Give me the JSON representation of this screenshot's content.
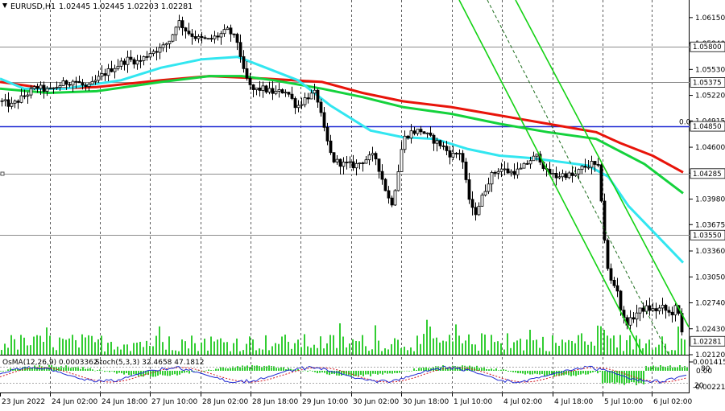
{
  "header": {
    "symbol_timeframe": "EURUSD,H1",
    "ohlc": "1.02445 1.02445 1.02203 1.02281"
  },
  "indicator_header": {
    "osma": "OsMA(12,26,9) 0.0003362",
    "stoch": "Stoch(5,3,3) 32.4658 47.1812"
  },
  "colors": {
    "background": "#ffffff",
    "candle": "#000000",
    "volume": "#32cd32",
    "ema_red": "#e8140a",
    "ema_green": "#14d23c",
    "ema_cyan": "#32e6f0",
    "channel_green": "#14d214",
    "blue_level": "#1e28d2",
    "grey_level": "#8c8c8c",
    "stoch_main": "#1e28d2",
    "stoch_signal": "#d2141e",
    "osma_hist": "#32cd32"
  },
  "chart_data": {
    "type": "candlestick",
    "symbol": "EURUSD",
    "timeframe": "H1",
    "y_range": [
      1.0212,
      1.0636
    ],
    "price_ticks": [
      "1.06150",
      "1.05840",
      "1.05530",
      "1.05220",
      "1.04915",
      "1.04600",
      "1.04290",
      "1.03980",
      "1.03675",
      "1.03360",
      "1.03050",
      "1.02740",
      "1.02430",
      "1.02120"
    ],
    "price_tags": [
      {
        "label": "1.05800",
        "value": 1.058
      },
      {
        "label": "1.05375",
        "value": 1.05375
      },
      {
        "label": "1.04850",
        "value": 1.0485
      },
      {
        "label": "1.04285",
        "value": 1.04285
      },
      {
        "label": "1.03550",
        "value": 1.0355
      },
      {
        "label": "1.02281",
        "value": 1.02281
      }
    ],
    "horizontal_levels": [
      {
        "value": 1.058,
        "color": "grey"
      },
      {
        "value": 1.05375,
        "color": "grey"
      },
      {
        "value": 1.0485,
        "color": "blue",
        "label": "0.0"
      },
      {
        "value": 1.04285,
        "color": "grey"
      },
      {
        "value": 1.0355,
        "color": "grey"
      }
    ],
    "time_labels": [
      "23 Jun 2022",
      "24 Jun 02:00",
      "24 Jun 18:00",
      "27 Jun 10:00",
      "28 Jun 02:00",
      "28 Jun 18:00",
      "29 Jun 10:00",
      "30 Jun 02:00",
      "30 Jun 18:00",
      "1 Jul 10:00",
      "4 Jul 02:00",
      "4 Jul 18:00",
      "5 Jul 10:00",
      "6 Jul 02:00"
    ],
    "price_path": [
      [
        0,
        1.0515
      ],
      [
        14,
        1.051
      ],
      [
        28,
        1.052
      ],
      [
        45,
        1.0532
      ],
      [
        60,
        1.0527
      ],
      [
        75,
        1.0535
      ],
      [
        92,
        1.054
      ],
      [
        108,
        1.053
      ],
      [
        125,
        1.0545
      ],
      [
        140,
        1.0555
      ],
      [
        158,
        1.0565
      ],
      [
        172,
        1.0562
      ],
      [
        188,
        1.0575
      ],
      [
        200,
        1.0578
      ],
      [
        212,
        1.059
      ],
      [
        220,
        1.0612
      ],
      [
        232,
        1.0598
      ],
      [
        245,
        1.059
      ],
      [
        258,
        1.0588
      ],
      [
        270,
        1.0593
      ],
      [
        283,
        1.06
      ],
      [
        295,
        1.0585
      ],
      [
        302,
        1.055
      ],
      [
        312,
        1.0528
      ],
      [
        325,
        1.053
      ],
      [
        340,
        1.0525
      ],
      [
        355,
        1.0528
      ],
      [
        368,
        1.0508
      ],
      [
        380,
        1.052
      ],
      [
        392,
        1.0525
      ],
      [
        402,
        1.048
      ],
      [
        412,
        1.0445
      ],
      [
        425,
        1.044
      ],
      [
        440,
        1.0438
      ],
      [
        452,
        1.0445
      ],
      [
        465,
        1.045
      ],
      [
        478,
        1.041
      ],
      [
        485,
        1.039
      ],
      [
        492,
        1.042
      ],
      [
        500,
        1.047
      ],
      [
        510,
        1.0478
      ],
      [
        522,
        1.048
      ],
      [
        535,
        1.047
      ],
      [
        548,
        1.0462
      ],
      [
        560,
        1.045
      ],
      [
        572,
        1.0455
      ],
      [
        580,
        1.0405
      ],
      [
        588,
        1.0378
      ],
      [
        598,
        1.04
      ],
      [
        608,
        1.0425
      ],
      [
        620,
        1.0435
      ],
      [
        632,
        1.043
      ],
      [
        645,
        1.0432
      ],
      [
        658,
        1.0445
      ],
      [
        668,
        1.045
      ],
      [
        678,
        1.043
      ],
      [
        690,
        1.0425
      ],
      [
        700,
        1.0428
      ],
      [
        712,
        1.0425
      ],
      [
        722,
        1.0435
      ],
      [
        734,
        1.044
      ],
      [
        742,
        1.0435
      ],
      [
        748,
        1.038
      ],
      [
        752,
        1.032
      ],
      [
        758,
        1.03
      ],
      [
        766,
        1.029
      ],
      [
        772,
        1.0255
      ],
      [
        780,
        1.025
      ],
      [
        790,
        1.0262
      ],
      [
        800,
        1.0268
      ],
      [
        812,
        1.0265
      ],
      [
        822,
        1.0268
      ],
      [
        832,
        1.026
      ],
      [
        840,
        1.027
      ],
      [
        848,
        1.0228
      ]
    ],
    "moving_averages": [
      {
        "color": "red",
        "points": [
          [
            0,
            1.0538
          ],
          [
            60,
            1.053
          ],
          [
            120,
            1.0532
          ],
          [
            200,
            1.054
          ],
          [
            260,
            1.0545
          ],
          [
            330,
            1.0542
          ],
          [
            400,
            1.0538
          ],
          [
            450,
            1.0525
          ],
          [
            500,
            1.0515
          ],
          [
            560,
            1.0508
          ],
          [
            620,
            1.0498
          ],
          [
            680,
            1.0488
          ],
          [
            740,
            1.0478
          ],
          [
            770,
            1.0465
          ],
          [
            810,
            1.045
          ],
          [
            848,
            1.043
          ]
        ]
      },
      {
        "color": "green",
        "points": [
          [
            0,
            1.053
          ],
          [
            60,
            1.0525
          ],
          [
            120,
            1.0527
          ],
          [
            200,
            1.0538
          ],
          [
            260,
            1.0545
          ],
          [
            300,
            1.0545
          ],
          [
            340,
            1.054
          ],
          [
            400,
            1.053
          ],
          [
            450,
            1.052
          ],
          [
            500,
            1.0508
          ],
          [
            560,
            1.05
          ],
          [
            620,
            1.0488
          ],
          [
            680,
            1.0478
          ],
          [
            740,
            1.047
          ],
          [
            770,
            1.0455
          ],
          [
            800,
            1.044
          ],
          [
            848,
            1.0405
          ]
        ]
      },
      {
        "color": "cyan",
        "points": [
          [
            0,
            1.0542
          ],
          [
            30,
            1.053
          ],
          [
            80,
            1.053
          ],
          [
            150,
            1.054
          ],
          [
            200,
            1.0555
          ],
          [
            250,
            1.0565
          ],
          [
            295,
            1.0568
          ],
          [
            330,
            1.0555
          ],
          [
            370,
            1.054
          ],
          [
            410,
            1.051
          ],
          [
            460,
            1.048
          ],
          [
            500,
            1.0472
          ],
          [
            540,
            1.047
          ],
          [
            580,
            1.0458
          ],
          [
            620,
            1.045
          ],
          [
            660,
            1.0447
          ],
          [
            700,
            1.0442
          ],
          [
            730,
            1.0438
          ],
          [
            755,
            1.0425
          ],
          [
            780,
            1.039
          ],
          [
            810,
            1.036
          ],
          [
            848,
            1.0322
          ]
        ]
      }
    ],
    "trend_lines": [
      {
        "color": "green",
        "style": "solid",
        "from": [
          570,
          1.0636
        ],
        "to": [
          798,
          1.0212
        ]
      },
      {
        "color": "green",
        "style": "solid",
        "from": [
          640,
          1.0636
        ],
        "to": [
          855,
          1.0245
        ]
      },
      {
        "color": "darkgreen",
        "style": "dashed",
        "from": [
          605,
          1.0636
        ],
        "to": [
          830,
          1.0212
        ]
      }
    ]
  }
}
